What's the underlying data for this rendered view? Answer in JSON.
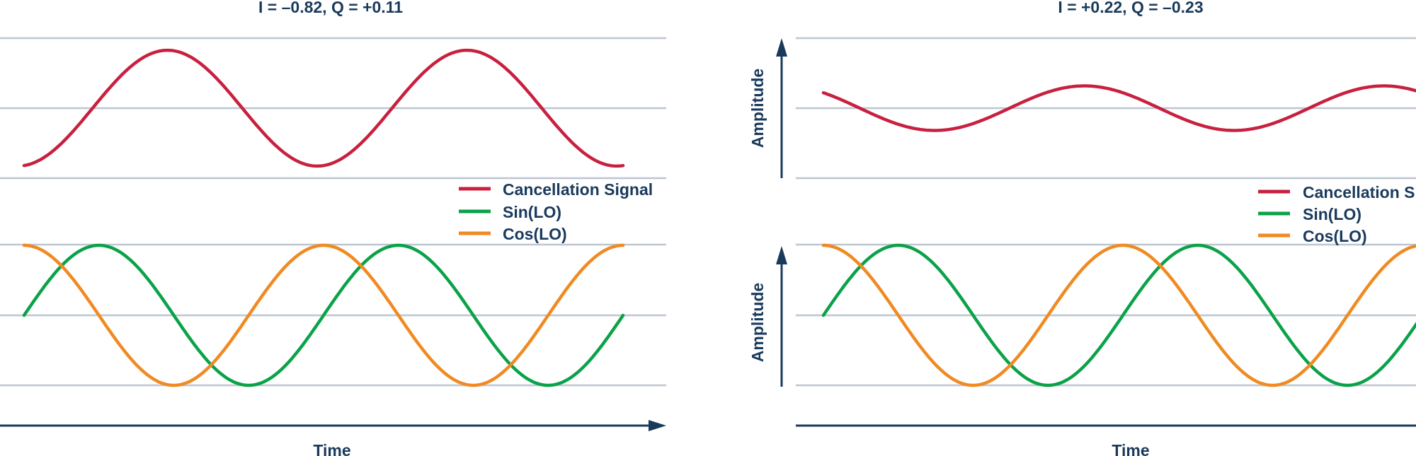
{
  "colors": {
    "cancellation": "#c8203f",
    "sin": "#0aa249",
    "cos": "#f08a22",
    "text": "#1a3a5c",
    "grid": "#bcc6d2"
  },
  "chart_data": [
    {
      "type": "line",
      "title": "I = –0.82, Q = +0.11",
      "xlabel": "Time",
      "ylabel": "",
      "legend": [
        "Cancellation Signal",
        "Sin(LO)",
        "Cos(LO)"
      ],
      "legend_position": "bottom-right of top plot",
      "grid": true,
      "I": -0.82,
      "Q": 0.11,
      "cycles": 2,
      "top_plot": {
        "series": [
          {
            "name": "Cancellation Signal",
            "color": "#c8203f"
          }
        ],
        "ylim": [
          -1,
          1
        ]
      },
      "bottom_plot": {
        "series": [
          {
            "name": "Sin(LO)",
            "color": "#0aa249"
          },
          {
            "name": "Cos(LO)",
            "color": "#f08a22"
          }
        ],
        "ylim": [
          -1,
          1
        ]
      }
    },
    {
      "type": "line",
      "title": "I = +0.22, Q = –0.23",
      "xlabel": "Time",
      "ylabel": "Amplitude",
      "legend": [
        "Cancellation Signal",
        "Sin(LO)",
        "Cos(LO)"
      ],
      "legend_position": "bottom-right of top plot",
      "grid": true,
      "I": 0.22,
      "Q": -0.23,
      "cycles": 2,
      "top_plot": {
        "series": [
          {
            "name": "Cancellation Signal",
            "color": "#c8203f"
          }
        ],
        "ylim": [
          -1,
          1
        ]
      },
      "bottom_plot": {
        "series": [
          {
            "name": "Sin(LO)",
            "color": "#0aa249"
          },
          {
            "name": "Cos(LO)",
            "color": "#f08a22"
          }
        ],
        "ylim": [
          -1,
          1
        ]
      }
    }
  ]
}
